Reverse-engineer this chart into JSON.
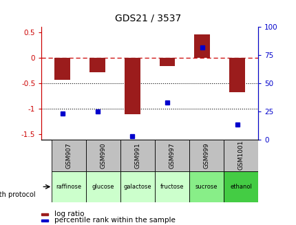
{
  "title": "GDS21 / 3537",
  "samples": [
    "GSM907",
    "GSM990",
    "GSM991",
    "GSM997",
    "GSM999",
    "GSM1001"
  ],
  "protocols": [
    "raffinose",
    "glucose",
    "galactose",
    "fructose",
    "sucrose",
    "ethanol"
  ],
  "log_ratio": [
    -0.43,
    -0.28,
    -1.1,
    -0.17,
    0.45,
    -0.68
  ],
  "percentile_rank": [
    23,
    25,
    3,
    33,
    82,
    13
  ],
  "bar_color": "#9b1c1c",
  "dot_color": "#0000cc",
  "bg_color": "#ffffff",
  "zero_line_color": "#cc0000",
  "dotted_line_color": "#000000",
  "ylim": [
    -1.6,
    0.6
  ],
  "ylim_right": [
    0,
    100
  ],
  "y_ticks_left": [
    0.5,
    0.0,
    -0.5,
    -1.0,
    -1.5
  ],
  "y_ticks_right": [
    100,
    75,
    50,
    25,
    0
  ],
  "sample_box_color": "#c0c0c0",
  "protocol_colors": [
    "#ccffcc",
    "#ccffcc",
    "#ccffcc",
    "#ccffcc",
    "#88ee88",
    "#44cc44"
  ],
  "label_log_ratio": "log ratio",
  "label_percentile": "percentile rank within the sample",
  "growth_protocol_label": "growth protocol",
  "title_color": "#000000",
  "left_axis_color": "#cc0000",
  "right_axis_color": "#0000cc"
}
